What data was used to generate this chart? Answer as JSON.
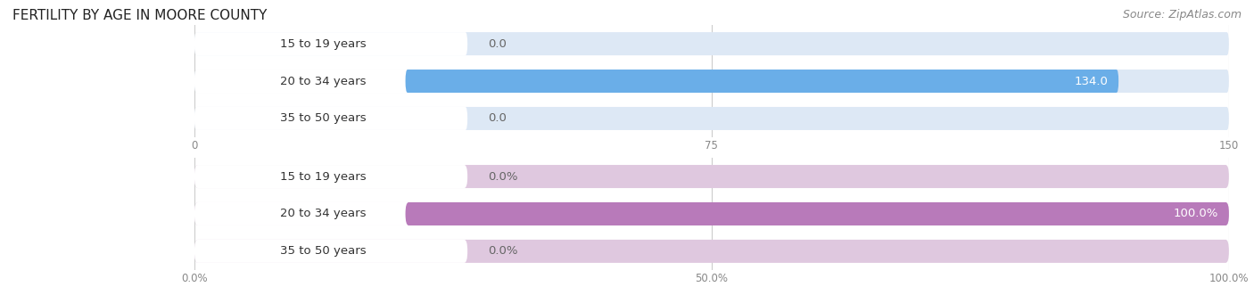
{
  "title": "FERTILITY BY AGE IN MOORE COUNTY",
  "source": "Source: ZipAtlas.com",
  "top_chart": {
    "categories": [
      "15 to 19 years",
      "20 to 34 years",
      "35 to 50 years"
    ],
    "values": [
      0.0,
      134.0,
      0.0
    ],
    "xlim": [
      0,
      150.0
    ],
    "xticks": [
      0.0,
      75.0,
      150.0
    ],
    "bar_color_full": "#6aaee8",
    "bar_color_empty": "#dde8f5",
    "bar_label_bg": "#e8eff8",
    "value_labels": [
      "0.0",
      "134.0",
      "0.0"
    ]
  },
  "bottom_chart": {
    "categories": [
      "15 to 19 years",
      "20 to 34 years",
      "35 to 50 years"
    ],
    "values": [
      0.0,
      100.0,
      0.0
    ],
    "xlim": [
      0,
      100.0
    ],
    "xticks": [
      0.0,
      50.0,
      100.0
    ],
    "xtick_labels": [
      "0.0%",
      "50.0%",
      "100.0%"
    ],
    "bar_color_full": "#b87aba",
    "bar_color_empty": "#dfc8df",
    "bar_label_bg": "#e8d8ea",
    "value_labels": [
      "0.0%",
      "100.0%",
      "0.0%"
    ]
  },
  "page_bg_color": "#ffffff",
  "section_bg_color": "#f5f5f8",
  "bar_height": 0.62,
  "label_fontsize": 9.5,
  "title_fontsize": 11,
  "source_fontsize": 9,
  "tick_fontsize": 8.5,
  "label_text_color": "#333333",
  "tick_color": "#888888",
  "grid_color": "#cccccc",
  "value_label_color_inside": "#ffffff",
  "value_label_color_outside": "#666666"
}
